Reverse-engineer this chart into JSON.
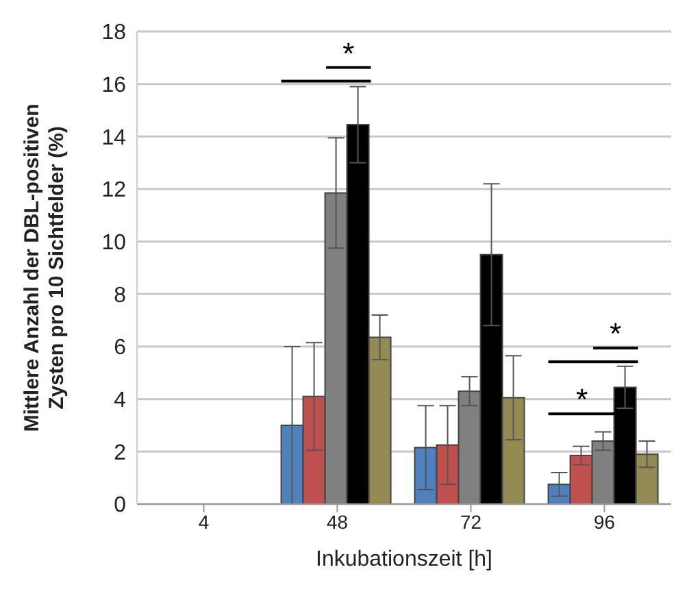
{
  "chart_data": {
    "type": "bar",
    "xlabel": "Inkubationszeit  [h]",
    "ylabel": "Mittlere Anzahl der DBL-positiven\nZysten pro 10 Sichtfelder (%)",
    "categories": [
      "4",
      "48",
      "72",
      "96"
    ],
    "series": [
      {
        "color": "#4f81bd",
        "values": [
          0,
          3.0,
          2.15,
          0.75
        ],
        "errors": [
          null,
          3.0,
          1.6,
          0.45
        ]
      },
      {
        "color": "#c0504d",
        "values": [
          0,
          4.1,
          2.25,
          1.85
        ],
        "errors": [
          null,
          2.05,
          1.5,
          0.35
        ]
      },
      {
        "color": "#808080",
        "values": [
          0,
          11.85,
          4.3,
          2.4
        ],
        "errors": [
          null,
          2.1,
          0.55,
          0.35
        ]
      },
      {
        "color": "#000000",
        "values": [
          0,
          14.45,
          9.5,
          4.45
        ],
        "errors": [
          null,
          1.45,
          2.7,
          0.8
        ]
      },
      {
        "color": "#948a54",
        "values": [
          0,
          6.35,
          4.05,
          1.9
        ],
        "errors": [
          null,
          0.85,
          1.6,
          0.5
        ]
      }
    ],
    "ylim": [
      0,
      18
    ],
    "yticks": [
      0,
      2,
      4,
      6,
      8,
      10,
      12,
      14,
      16,
      18
    ],
    "grid": "y",
    "legend": false,
    "annotations": [
      "*",
      "*",
      "*"
    ]
  }
}
